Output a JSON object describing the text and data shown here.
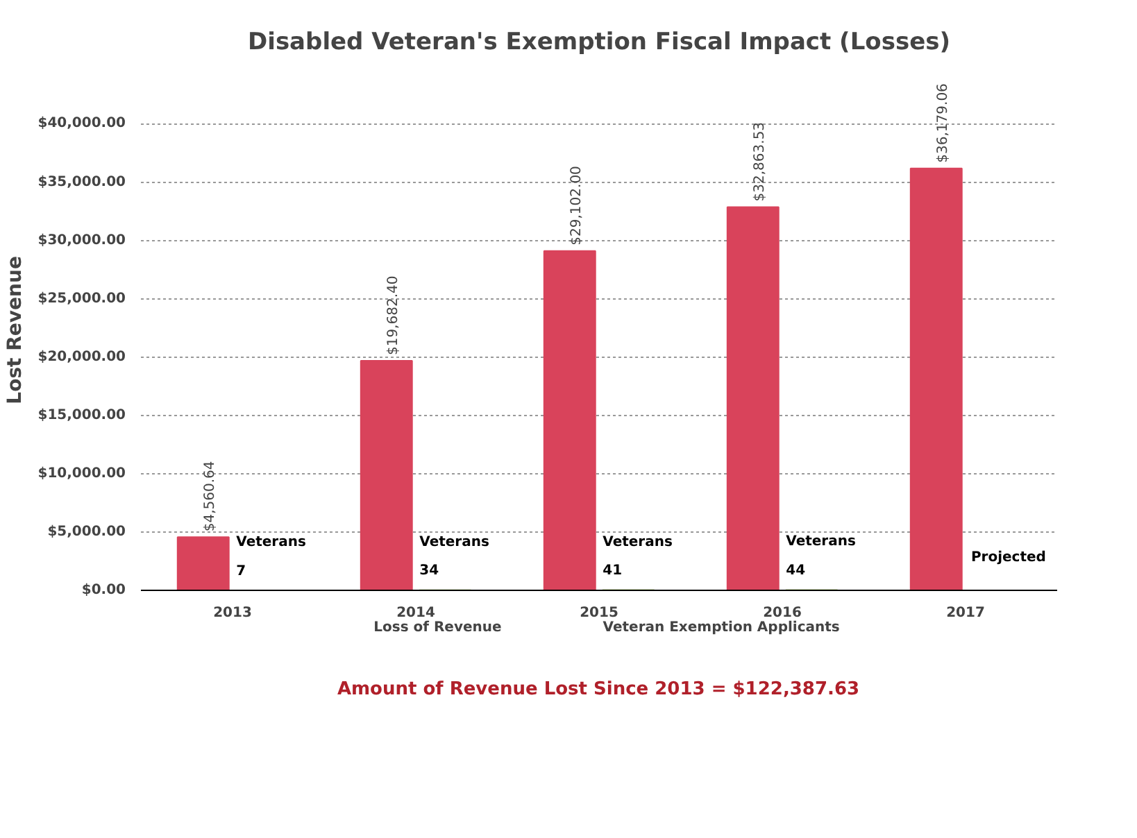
{
  "chart_data": {
    "type": "bar",
    "title": "Disabled Veteran's Exemption Fiscal Impact (Losses)",
    "ylabel": "Lost  Revenue",
    "categories": [
      "2013",
      "2014",
      "2015",
      "2016",
      "2017"
    ],
    "series": [
      {
        "name": "Loss of Revenue",
        "color": "#d9435b",
        "values": [
          4560.64,
          19682.4,
          29102.0,
          32863.53,
          36179.06
        ],
        "value_labels": [
          "$4,560.64",
          "$19,682.40",
          "$29,102.00",
          "$32,863.53",
          "$36,179.06"
        ]
      },
      {
        "name": "Veteran Exemption Applicants",
        "color": "#c4d79b",
        "values": [
          7,
          34,
          41,
          44,
          null
        ],
        "value_labels": [
          "Veterans\n7",
          "Veterans\n34",
          "Veterans\n41",
          "Veterans\n44",
          null
        ]
      }
    ],
    "ylim": [
      0,
      40000
    ],
    "yticks": [
      {
        "value": 0,
        "label": "$0.00"
      },
      {
        "value": 5000,
        "label": "$5,000.00"
      },
      {
        "value": 10000,
        "label": "$10,000.00"
      },
      {
        "value": 15000,
        "label": "$15,000.00"
      },
      {
        "value": 20000,
        "label": "$20,000.00"
      },
      {
        "value": 25000,
        "label": "$25,000.00"
      },
      {
        "value": 30000,
        "label": "$30,000.00"
      },
      {
        "value": 35000,
        "label": "$35,000.00"
      },
      {
        "value": 40000,
        "label": "$40,000.00"
      }
    ],
    "grid": "y",
    "legend": "bottom",
    "annotations": [
      {
        "text": "Projected",
        "x": "2017",
        "y": 2800
      },
      "Amount of Revenue Lost Since 2013 = $122,387.63"
    ]
  }
}
